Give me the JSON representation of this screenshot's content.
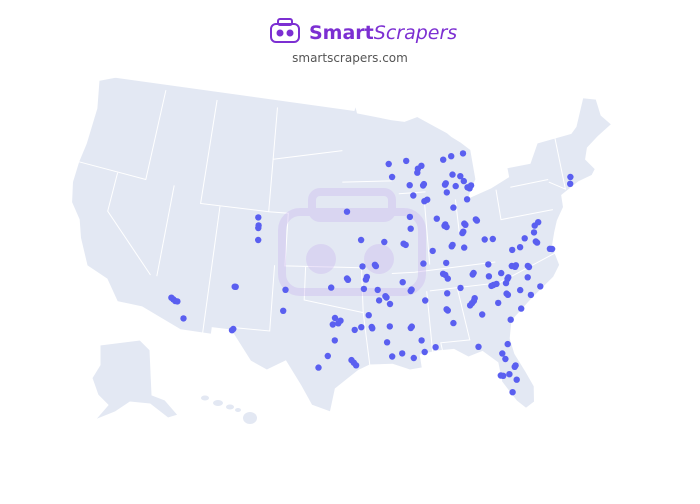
{
  "header": {
    "brand_bold": "Smart",
    "brand_italic": "Scrapers",
    "url": "smartscrapers.com"
  },
  "map": {
    "type": "dot-map",
    "color": "#5a5ff0",
    "locations": [
      [
        -112.1,
        33.5
      ],
      [
        -111.9,
        33.4
      ],
      [
        -111.7,
        33.4
      ],
      [
        -112.3,
        33.6
      ],
      [
        -110.9,
        32.2
      ],
      [
        -106.4,
        31.8
      ],
      [
        -106.3,
        31.9
      ],
      [
        -106.6,
        35.1
      ],
      [
        -106.5,
        35.1
      ],
      [
        -104.9,
        39.7
      ],
      [
        -104.8,
        38.8
      ],
      [
        -105.0,
        40.5
      ],
      [
        -104.9,
        39.9
      ],
      [
        -101.8,
        35.2
      ],
      [
        -101.9,
        33.6
      ],
      [
        -96.0,
        41.25
      ],
      [
        -96.8,
        32.8
      ],
      [
        -97.3,
        32.7
      ],
      [
        -96.6,
        33.0
      ],
      [
        -97.1,
        33.2
      ],
      [
        -97.7,
        30.3
      ],
      [
        -98.5,
        29.4
      ],
      [
        -95.4,
        29.8
      ],
      [
        -95.2,
        29.6
      ],
      [
        -95.6,
        30.0
      ],
      [
        -95.3,
        32.3
      ],
      [
        -94.7,
        32.5
      ],
      [
        -97.1,
        31.5
      ],
      [
        -95.9,
        36.1
      ],
      [
        -96.0,
        36.2
      ],
      [
        -97.5,
        35.5
      ],
      [
        -92.3,
        34.7
      ],
      [
        -92.4,
        34.8
      ],
      [
        -94.4,
        35.4
      ],
      [
        -94.2,
        36.1
      ],
      [
        -94.1,
        36.3
      ],
      [
        -90.7,
        35.8
      ],
      [
        -93.0,
        34.5
      ],
      [
        -94.0,
        33.4
      ],
      [
        -92.0,
        34.2
      ],
      [
        -93.1,
        35.3
      ],
      [
        -93.3,
        37.2
      ],
      [
        -93.2,
        37.1
      ],
      [
        -94.5,
        37.1
      ],
      [
        -94.6,
        39.1
      ],
      [
        -90.2,
        38.6
      ],
      [
        -90.4,
        38.7
      ],
      [
        -92.3,
        38.9
      ],
      [
        -93.75,
        32.5
      ],
      [
        -93.7,
        32.4
      ],
      [
        -92.1,
        32.5
      ],
      [
        -92.4,
        31.3
      ],
      [
        -91.1,
        30.4
      ],
      [
        -92.0,
        30.2
      ],
      [
        -90.1,
        30.0
      ],
      [
        -90.2,
        32.3
      ],
      [
        -90.1,
        32.4
      ],
      [
        -89.3,
        31.3
      ],
      [
        -88.7,
        34.3
      ],
      [
        -89.1,
        30.4
      ],
      [
        -90.0,
        35.1
      ],
      [
        -89.9,
        35.2
      ],
      [
        -86.8,
        36.2
      ],
      [
        -86.6,
        36.1
      ],
      [
        -86.4,
        35.8
      ],
      [
        -83.9,
        36.0
      ],
      [
        -84.0,
        35.9
      ],
      [
        -85.3,
        35.0
      ],
      [
        -82.4,
        36.5
      ],
      [
        -85.7,
        38.2
      ],
      [
        -85.6,
        38.3
      ],
      [
        -84.5,
        38.0
      ],
      [
        -86.4,
        37.0
      ],
      [
        -88.6,
        37.1
      ],
      [
        -87.6,
        38.0
      ],
      [
        -89.6,
        40.7
      ],
      [
        -89.6,
        39.8
      ],
      [
        -87.7,
        41.9
      ],
      [
        -88.0,
        41.8
      ],
      [
        -89.1,
        42.3
      ],
      [
        -86.2,
        39.8
      ],
      [
        -86.1,
        39.9
      ],
      [
        -86.0,
        39.7
      ],
      [
        -85.1,
        41.1
      ],
      [
        -86.9,
        40.4
      ],
      [
        -83.0,
        40.0
      ],
      [
        -82.9,
        39.9
      ],
      [
        -84.5,
        39.1
      ],
      [
        -84.4,
        39.2
      ],
      [
        -84.2,
        39.8
      ],
      [
        -84.1,
        39.7
      ],
      [
        -83.6,
        41.6
      ],
      [
        -83.2,
        42.4
      ],
      [
        -83.4,
        42.5
      ],
      [
        -83.0,
        42.6
      ],
      [
        -84.6,
        42.7
      ],
      [
        -85.7,
        42.9
      ],
      [
        -85.6,
        43.0
      ],
      [
        -83.7,
        43.0
      ],
      [
        -84.0,
        43.4
      ],
      [
        -85.6,
        42.3
      ],
      [
        -85.6,
        44.8
      ],
      [
        -84.8,
        43.6
      ],
      [
        -83.4,
        45.1
      ],
      [
        -84.7,
        45.0
      ],
      [
        -88.0,
        43.0
      ],
      [
        -87.9,
        43.1
      ],
      [
        -89.4,
        43.1
      ],
      [
        -88.0,
        44.5
      ],
      [
        -88.4,
        44.3
      ],
      [
        -89.6,
        44.96
      ],
      [
        -91.5,
        44.8
      ],
      [
        -91.2,
        43.8
      ],
      [
        -88.5,
        44.0
      ],
      [
        -86.8,
        33.5
      ],
      [
        -86.7,
        33.4
      ],
      [
        -86.6,
        34.7
      ],
      [
        -86.3,
        32.4
      ],
      [
        -88.1,
        30.7
      ],
      [
        -84.4,
        33.75
      ],
      [
        -84.2,
        33.9
      ],
      [
        -84.6,
        33.6
      ],
      [
        -84.1,
        34.1
      ],
      [
        -82.0,
        33.5
      ],
      [
        -83.6,
        32.8
      ],
      [
        -81.1,
        32.1
      ],
      [
        -82.4,
        34.85
      ],
      [
        -82.2,
        34.9
      ],
      [
        -81.9,
        34.95
      ],
      [
        -81.0,
        34.0
      ],
      [
        -81.1,
        34.1
      ],
      [
        -80.0,
        32.8
      ],
      [
        -78.9,
        33.7
      ],
      [
        -81.0,
        34.9
      ],
      [
        -79.8,
        34.2
      ],
      [
        -80.8,
        35.2
      ],
      [
        -80.7,
        35.3
      ],
      [
        -78.6,
        35.8
      ],
      [
        -78.7,
        35.9
      ],
      [
        -79.8,
        36.1
      ],
      [
        -79.9,
        36.0
      ],
      [
        -80.2,
        36.1
      ],
      [
        -78.9,
        35.05
      ],
      [
        -77.9,
        34.2
      ],
      [
        -82.5,
        35.6
      ],
      [
        -81.3,
        35.7
      ],
      [
        -77.4,
        37.5
      ],
      [
        -77.5,
        37.6
      ],
      [
        -76.3,
        36.85
      ],
      [
        -76.1,
        36.8
      ],
      [
        -79.9,
        37.3
      ],
      [
        -79.1,
        37.4
      ],
      [
        -78.5,
        38.0
      ],
      [
        -77.5,
        38.3
      ],
      [
        -77.3,
        38.8
      ],
      [
        -81.6,
        38.35
      ],
      [
        -82.4,
        38.4
      ],
      [
        -76.9,
        39.0
      ],
      [
        -72.7,
        41.8
      ],
      [
        -72.9,
        41.3
      ],
      [
        -82.5,
        27.95
      ],
      [
        -82.7,
        28.0
      ],
      [
        -81.4,
        28.5
      ],
      [
        -81.3,
        28.6
      ],
      [
        -81.7,
        30.3
      ],
      [
        -82.3,
        29.65
      ],
      [
        -81.95,
        28.0
      ],
      [
        -81.9,
        26.6
      ],
      [
        -84.3,
        30.4
      ],
      [
        -82.1,
        29.2
      ],
      [
        -81.4,
        27.5
      ]
    ]
  }
}
